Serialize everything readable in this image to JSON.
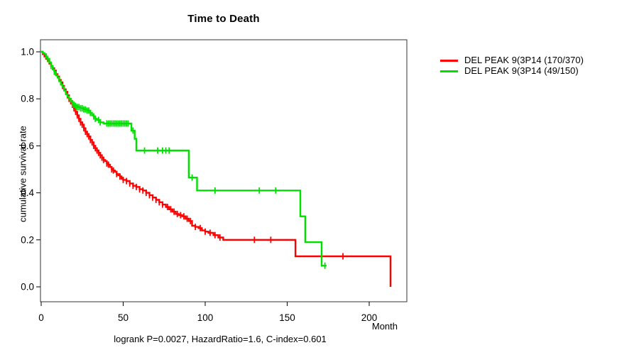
{
  "title": "Time to Death",
  "caption": "logrank P=0.0027, HazardRatio=1.6, C-index=0.601",
  "x_axis_label": "Month",
  "y_axis_label": "cumulative survival rate",
  "legend": {
    "items": [
      {
        "label": "DEL PEAK 9(3P14 (170/370)",
        "color": "#ff0000"
      },
      {
        "label": "DEL PEAK 9(3P14 (49/150)",
        "color": "#00e000"
      }
    ]
  },
  "chart_data": {
    "type": "line",
    "subtype": "kaplan-meier-step",
    "title": "Time to Death",
    "xlabel": "Month",
    "ylabel": "cumulative survival rate",
    "annotation": "logrank P=0.0027, HazardRatio=1.6, C-index=0.601",
    "xlim": [
      0,
      223
    ],
    "ylim": [
      0.0,
      1.0
    ],
    "x_ticks": [
      0,
      50,
      100,
      150,
      200
    ],
    "y_ticks": [
      "0.0",
      "0.2",
      "0.4",
      "0.6",
      "0.8",
      "1.0"
    ],
    "grid": false,
    "legend_position": "right-outside-top",
    "series": [
      {
        "name": "DEL PEAK 9(3P14 (170/370)",
        "color": "#ff0000",
        "n_events": "170/370",
        "steps": [
          [
            0,
            1.0
          ],
          [
            1,
            0.99
          ],
          [
            2,
            0.98
          ],
          [
            3,
            0.97
          ],
          [
            4,
            0.96
          ],
          [
            5,
            0.95
          ],
          [
            6,
            0.94
          ],
          [
            7,
            0.93
          ],
          [
            8,
            0.92
          ],
          [
            9,
            0.905
          ],
          [
            10,
            0.895
          ],
          [
            11,
            0.88
          ],
          [
            12,
            0.87
          ],
          [
            13,
            0.855
          ],
          [
            14,
            0.84
          ],
          [
            15,
            0.83
          ],
          [
            16,
            0.815
          ],
          [
            17,
            0.8
          ],
          [
            18,
            0.79
          ],
          [
            19,
            0.775
          ],
          [
            20,
            0.76
          ],
          [
            21,
            0.745
          ],
          [
            22,
            0.73
          ],
          [
            23,
            0.715
          ],
          [
            24,
            0.7
          ],
          [
            25,
            0.69
          ],
          [
            26,
            0.675
          ],
          [
            27,
            0.66
          ],
          [
            28,
            0.65
          ],
          [
            29,
            0.64
          ],
          [
            30,
            0.625
          ],
          [
            31,
            0.615
          ],
          [
            32,
            0.6
          ],
          [
            33,
            0.59
          ],
          [
            34,
            0.58
          ],
          [
            35,
            0.57
          ],
          [
            36,
            0.56
          ],
          [
            37,
            0.55
          ],
          [
            38,
            0.54
          ],
          [
            39,
            0.535
          ],
          [
            40,
            0.525
          ],
          [
            41,
            0.52
          ],
          [
            42,
            0.51
          ],
          [
            43,
            0.5
          ],
          [
            44,
            0.495
          ],
          [
            45,
            0.49
          ],
          [
            46,
            0.48
          ],
          [
            47,
            0.475
          ],
          [
            48,
            0.47
          ],
          [
            49,
            0.46
          ],
          [
            50,
            0.455
          ],
          [
            52,
            0.45
          ],
          [
            54,
            0.44
          ],
          [
            56,
            0.43
          ],
          [
            58,
            0.425
          ],
          [
            60,
            0.415
          ],
          [
            62,
            0.41
          ],
          [
            64,
            0.4
          ],
          [
            66,
            0.39
          ],
          [
            68,
            0.38
          ],
          [
            70,
            0.37
          ],
          [
            72,
            0.36
          ],
          [
            74,
            0.35
          ],
          [
            76,
            0.34
          ],
          [
            78,
            0.33
          ],
          [
            80,
            0.32
          ],
          [
            82,
            0.31
          ],
          [
            84,
            0.305
          ],
          [
            86,
            0.3
          ],
          [
            88,
            0.29
          ],
          [
            90,
            0.28
          ],
          [
            92,
            0.26
          ],
          [
            94,
            0.255
          ],
          [
            96,
            0.25
          ],
          [
            98,
            0.24
          ],
          [
            100,
            0.235
          ],
          [
            102,
            0.23
          ],
          [
            105,
            0.22
          ],
          [
            108,
            0.21
          ],
          [
            111,
            0.2
          ],
          [
            155,
            0.13
          ],
          [
            213,
            0.0
          ]
        ],
        "censor_months": [
          13,
          15,
          16,
          17,
          18,
          19,
          20,
          21,
          22,
          23,
          24,
          25,
          26,
          27,
          28,
          29,
          30,
          31,
          32,
          33,
          34,
          35,
          36,
          37,
          38,
          40,
          41,
          43,
          44,
          46,
          48,
          50,
          52,
          54,
          56,
          58,
          60,
          62,
          64,
          66,
          68,
          70,
          72,
          74,
          77,
          79,
          81,
          83,
          85,
          87,
          89,
          91,
          94,
          97,
          100,
          103,
          106,
          109,
          130,
          140,
          184
        ]
      },
      {
        "name": "DEL PEAK 9(3P14 (49/150)",
        "color": "#00e000",
        "n_events": "49/150",
        "steps": [
          [
            0,
            1.0
          ],
          [
            1,
            0.995
          ],
          [
            2,
            0.99
          ],
          [
            3,
            0.975
          ],
          [
            4,
            0.97
          ],
          [
            5,
            0.955
          ],
          [
            6,
            0.94
          ],
          [
            7,
            0.925
          ],
          [
            8,
            0.915
          ],
          [
            9,
            0.9
          ],
          [
            10,
            0.89
          ],
          [
            11,
            0.875
          ],
          [
            12,
            0.86
          ],
          [
            13,
            0.85
          ],
          [
            14,
            0.835
          ],
          [
            15,
            0.82
          ],
          [
            16,
            0.81
          ],
          [
            17,
            0.8
          ],
          [
            18,
            0.79
          ],
          [
            19,
            0.78
          ],
          [
            20,
            0.775
          ],
          [
            21,
            0.77
          ],
          [
            22,
            0.765
          ],
          [
            24,
            0.76
          ],
          [
            26,
            0.755
          ],
          [
            28,
            0.75
          ],
          [
            30,
            0.74
          ],
          [
            31,
            0.73
          ],
          [
            32,
            0.725
          ],
          [
            33,
            0.715
          ],
          [
            34,
            0.71
          ],
          [
            36,
            0.7
          ],
          [
            38,
            0.695
          ],
          [
            55,
            0.665
          ],
          [
            57,
            0.63
          ],
          [
            58,
            0.58
          ],
          [
            90,
            0.465
          ],
          [
            95,
            0.41
          ],
          [
            158,
            0.3
          ],
          [
            161,
            0.19
          ],
          [
            171,
            0.09
          ],
          [
            174,
            0.09
          ]
        ],
        "censor_months": [
          4,
          6,
          8,
          19,
          20,
          21,
          22,
          23,
          24,
          25,
          26,
          27,
          28,
          29,
          30,
          32,
          33,
          35,
          36,
          40,
          41,
          42,
          43,
          44,
          45,
          46,
          47,
          48,
          49,
          50,
          51,
          52,
          53,
          56,
          63,
          71,
          74,
          76,
          78,
          92,
          106,
          133,
          143,
          173
        ]
      }
    ]
  }
}
